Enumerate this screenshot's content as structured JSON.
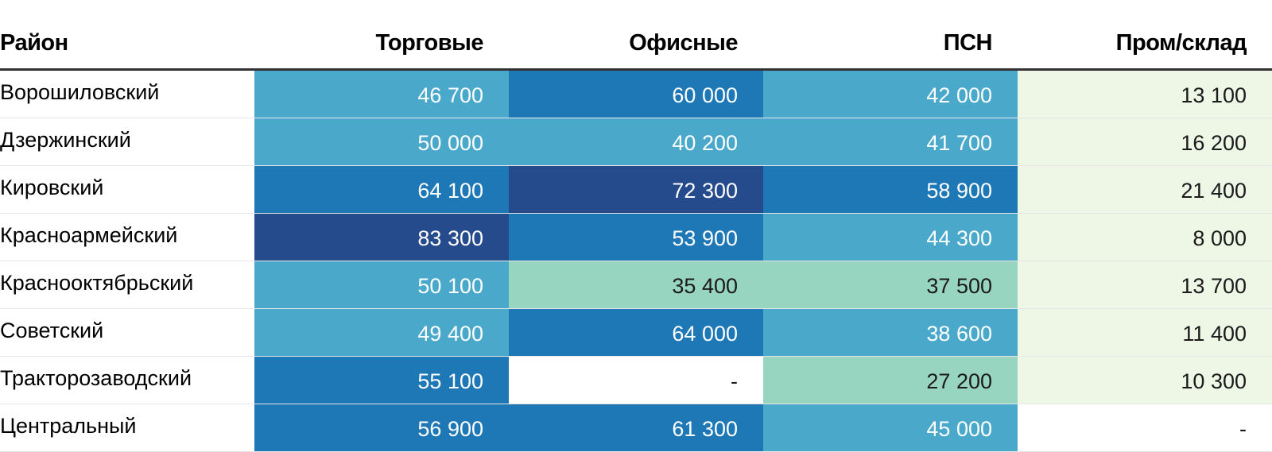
{
  "chart_data": {
    "type": "table",
    "columns": [
      "Район",
      "Торговые",
      "Офисные",
      "ПСН",
      "Пром/склад"
    ],
    "rows": [
      {
        "name": "Ворошиловский",
        "cells": [
          {
            "text": "46 700",
            "value": 46700,
            "bg": "#4aa8cb",
            "fg": "#ffffff"
          },
          {
            "text": "60 000",
            "value": 60000,
            "bg": "#1f78b6",
            "fg": "#ffffff"
          },
          {
            "text": "42 000",
            "value": 42000,
            "bg": "#4aa8cb",
            "fg": "#ffffff"
          },
          {
            "text": "13 100",
            "value": 13100,
            "bg": "#eef7e6",
            "fg": "#1a1a1a"
          }
        ]
      },
      {
        "name": "Дзержинский",
        "cells": [
          {
            "text": "50 000",
            "value": 50000,
            "bg": "#4aa8cb",
            "fg": "#ffffff"
          },
          {
            "text": "40 200",
            "value": 40200,
            "bg": "#4aa8cb",
            "fg": "#ffffff"
          },
          {
            "text": "41 700",
            "value": 41700,
            "bg": "#4aa8cb",
            "fg": "#ffffff"
          },
          {
            "text": "16 200",
            "value": 16200,
            "bg": "#eef7e6",
            "fg": "#1a1a1a"
          }
        ]
      },
      {
        "name": "Кировский",
        "cells": [
          {
            "text": "64 100",
            "value": 64100,
            "bg": "#1f78b6",
            "fg": "#ffffff"
          },
          {
            "text": "72 300",
            "value": 72300,
            "bg": "#254b8c",
            "fg": "#ffffff"
          },
          {
            "text": "58 900",
            "value": 58900,
            "bg": "#1f78b6",
            "fg": "#ffffff"
          },
          {
            "text": "21 400",
            "value": 21400,
            "bg": "#eef7e6",
            "fg": "#1a1a1a"
          }
        ]
      },
      {
        "name": "Красноармейский",
        "cells": [
          {
            "text": "83 300",
            "value": 83300,
            "bg": "#254b8c",
            "fg": "#ffffff"
          },
          {
            "text": "53 900",
            "value": 53900,
            "bg": "#1f78b6",
            "fg": "#ffffff"
          },
          {
            "text": "44 300",
            "value": 44300,
            "bg": "#4aa8cb",
            "fg": "#ffffff"
          },
          {
            "text": "8 000",
            "value": 8000,
            "bg": "#eef7e6",
            "fg": "#1a1a1a"
          }
        ]
      },
      {
        "name": "Краснооктябрьский",
        "cells": [
          {
            "text": "50 100",
            "value": 50100,
            "bg": "#4aa8cb",
            "fg": "#ffffff"
          },
          {
            "text": "35 400",
            "value": 35400,
            "bg": "#98d5c1",
            "fg": "#1a1a1a"
          },
          {
            "text": "37 500",
            "value": 37500,
            "bg": "#98d5c1",
            "fg": "#1a1a1a"
          },
          {
            "text": "13 700",
            "value": 13700,
            "bg": "#eef7e6",
            "fg": "#1a1a1a"
          }
        ]
      },
      {
        "name": "Советский",
        "cells": [
          {
            "text": "49 400",
            "value": 49400,
            "bg": "#4aa8cb",
            "fg": "#ffffff"
          },
          {
            "text": "64 000",
            "value": 64000,
            "bg": "#1f78b6",
            "fg": "#ffffff"
          },
          {
            "text": "38 600",
            "value": 38600,
            "bg": "#4aa8cb",
            "fg": "#ffffff"
          },
          {
            "text": "11 400",
            "value": 11400,
            "bg": "#eef7e6",
            "fg": "#1a1a1a"
          }
        ]
      },
      {
        "name": "Тракторозаводский",
        "cells": [
          {
            "text": "55 100",
            "value": 55100,
            "bg": "#1f78b6",
            "fg": "#ffffff"
          },
          {
            "text": "-",
            "value": null,
            "bg": "#ffffff",
            "fg": "#1a1a1a"
          },
          {
            "text": "27 200",
            "value": 27200,
            "bg": "#98d5c1",
            "fg": "#1a1a1a"
          },
          {
            "text": "10 300",
            "value": 10300,
            "bg": "#eef7e6",
            "fg": "#1a1a1a"
          }
        ]
      },
      {
        "name": "Центральный",
        "cells": [
          {
            "text": "56 900",
            "value": 56900,
            "bg": "#1f78b6",
            "fg": "#ffffff"
          },
          {
            "text": "61 300",
            "value": 61300,
            "bg": "#1f78b6",
            "fg": "#ffffff"
          },
          {
            "text": "45 000",
            "value": 45000,
            "bg": "#4aa8cb",
            "fg": "#ffffff"
          },
          {
            "text": "-",
            "value": null,
            "bg": "#ffffff",
            "fg": "#1a1a1a"
          }
        ]
      }
    ]
  }
}
